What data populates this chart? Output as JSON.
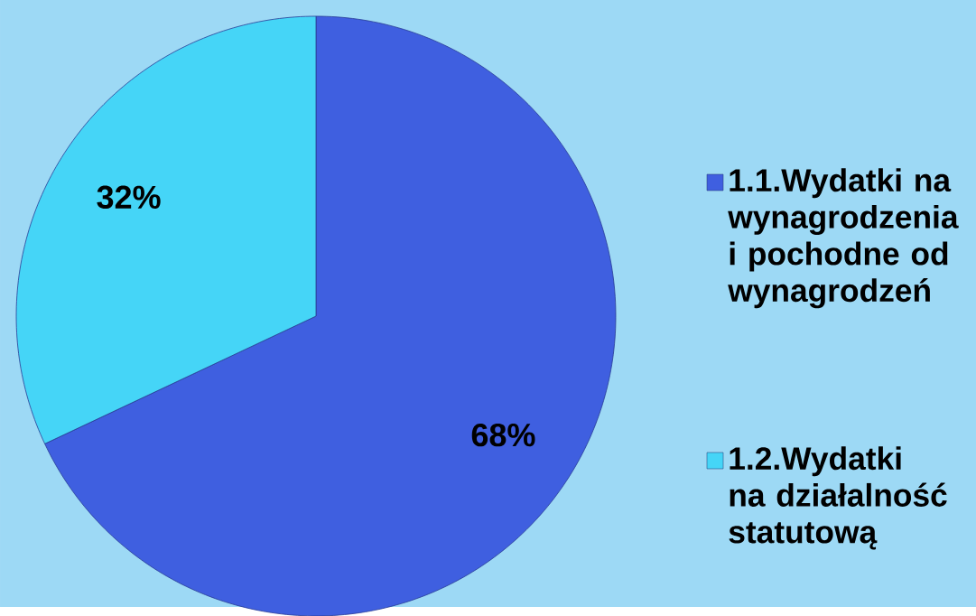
{
  "chart_data": {
    "type": "pie",
    "categories": [
      "1.1.Wydatki na wynagrodzenia i pochodne od wynagrodzeń",
      "1.2.Wydatki na działalność statutową"
    ],
    "values": [
      68,
      32
    ],
    "colors": [
      "#3f5fe0",
      "#45d5f7"
    ],
    "value_labels": [
      "68%",
      "32%"
    ],
    "legend": "right"
  }
}
